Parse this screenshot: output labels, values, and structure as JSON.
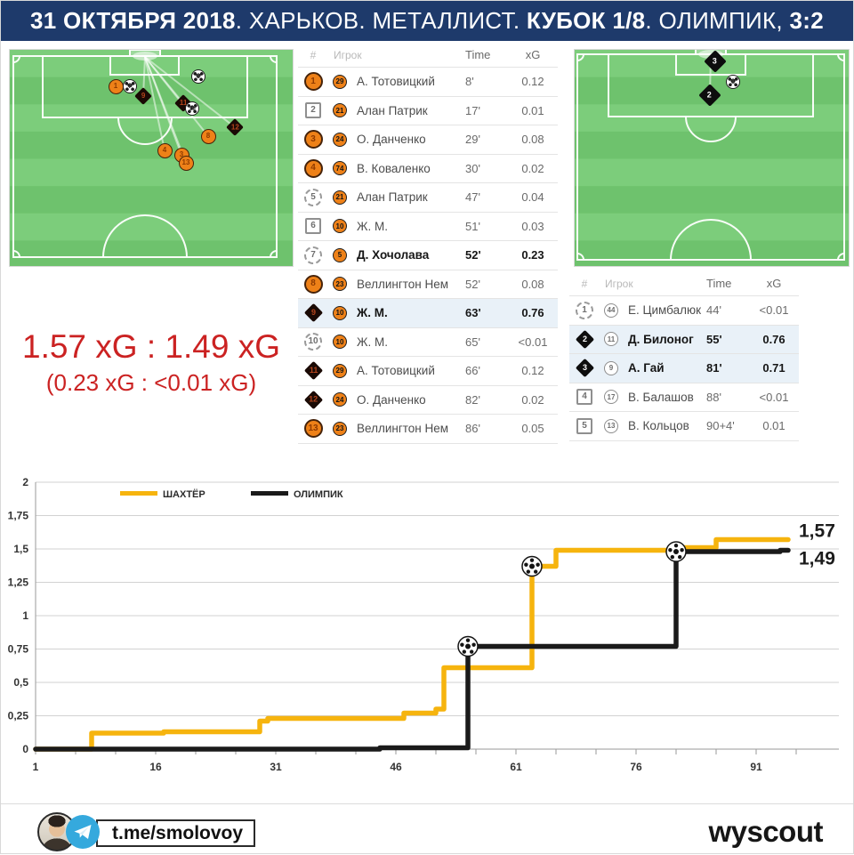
{
  "header": {
    "segments": [
      {
        "text": "31 ОКТЯБРЯ 2018",
        "bold": true
      },
      {
        "text": ". ХАРЬКОВ. МЕТАЛЛИСТ. ",
        "bold": false
      },
      {
        "text": "КУБОК 1/8",
        "bold": true
      },
      {
        "text": ". ОЛИМПИК, ",
        "bold": false
      },
      {
        "text": "3:2",
        "bold": true
      }
    ]
  },
  "score_summary": {
    "main": "1.57 xG : 1.49 xG",
    "sub": "(0.23 xG : <0.01 xG)"
  },
  "shots_table_left": {
    "columns": [
      "#",
      "Игрок",
      "Time",
      "xG"
    ],
    "rows": [
      {
        "n": "1",
        "shape": "circle",
        "jersey": "29",
        "player": "А. Тотовицкий",
        "time": "8'",
        "xg": "0.12",
        "bold": false,
        "highlight": false
      },
      {
        "n": "2",
        "shape": "square",
        "jersey": "21",
        "player": "Алан Патрик",
        "time": "17'",
        "xg": "0.01",
        "bold": false,
        "highlight": false
      },
      {
        "n": "3",
        "shape": "circle",
        "jersey": "24",
        "player": "О. Данченко",
        "time": "29'",
        "xg": "0.08",
        "bold": false,
        "highlight": false
      },
      {
        "n": "4",
        "shape": "circle",
        "jersey": "74",
        "player": "В. Коваленко",
        "time": "30'",
        "xg": "0.02",
        "bold": false,
        "highlight": false
      },
      {
        "n": "5",
        "shape": "dashed",
        "jersey": "21",
        "player": "Алан Патрик",
        "time": "47'",
        "xg": "0.04",
        "bold": false,
        "highlight": false
      },
      {
        "n": "6",
        "shape": "square",
        "jersey": "10",
        "player": "Ж. М.",
        "time": "51'",
        "xg": "0.03",
        "bold": false,
        "highlight": false
      },
      {
        "n": "7",
        "shape": "dashed",
        "jersey": "5",
        "player": "Д. Хочолава",
        "time": "52'",
        "xg": "0.23",
        "bold": true,
        "highlight": false
      },
      {
        "n": "8",
        "shape": "circle",
        "jersey": "23",
        "player": "Веллингтон Нем",
        "time": "52'",
        "xg": "0.08",
        "bold": false,
        "highlight": false
      },
      {
        "n": "9",
        "shape": "diamond",
        "jersey": "10",
        "player": "Ж. М.",
        "time": "63'",
        "xg": "0.76",
        "bold": true,
        "highlight": true
      },
      {
        "n": "10",
        "shape": "dashed",
        "jersey": "10",
        "player": "Ж. М.",
        "time": "65'",
        "xg": "<0.01",
        "bold": false,
        "highlight": false
      },
      {
        "n": "11",
        "shape": "diamond",
        "jersey": "29",
        "player": "А. Тотовицкий",
        "time": "66'",
        "xg": "0.12",
        "bold": false,
        "highlight": false
      },
      {
        "n": "12",
        "shape": "diamond",
        "jersey": "24",
        "player": "О. Данченко",
        "time": "82'",
        "xg": "0.02",
        "bold": false,
        "highlight": false
      },
      {
        "n": "13",
        "shape": "circle",
        "jersey": "23",
        "player": "Веллингтон Нем",
        "time": "86'",
        "xg": "0.05",
        "bold": false,
        "highlight": false
      }
    ]
  },
  "shots_table_right": {
    "columns": [
      "#",
      "Игрок",
      "Time",
      "xG"
    ],
    "rows": [
      {
        "n": "1",
        "shape": "dashed",
        "jersey": "44",
        "player": "Е. Цимбалюк",
        "time": "44'",
        "xg": "<0.01",
        "bold": false,
        "highlight": false
      },
      {
        "n": "2",
        "shape": "diamond",
        "jersey": "11",
        "player": "Д. Билоног",
        "time": "55'",
        "xg": "0.76",
        "bold": true,
        "highlight": true
      },
      {
        "n": "3",
        "shape": "diamond",
        "jersey": "9",
        "player": "А. Гай",
        "time": "81'",
        "xg": "0.71",
        "bold": true,
        "highlight": true
      },
      {
        "n": "4",
        "shape": "square",
        "jersey": "17",
        "player": "В. Балашов",
        "time": "88'",
        "xg": "<0.01",
        "bold": false,
        "highlight": false
      },
      {
        "n": "5",
        "shape": "square",
        "jersey": "13",
        "player": "В. Кольцов",
        "time": "90+4'",
        "xg": "0.01",
        "bold": false,
        "highlight": false
      }
    ]
  },
  "left_pitch": {
    "team": "ШАХТЁР",
    "goal_lines_to": [
      "9",
      "11",
      "12",
      "8",
      "4",
      "3",
      "13"
    ],
    "markers": [
      {
        "type": "circle",
        "label": "1",
        "x": 119,
        "y": 41
      },
      {
        "type": "ball",
        "label": "7",
        "x": 135,
        "y": 41
      },
      {
        "type": "diamond",
        "label": "9",
        "x": 150,
        "y": 52
      },
      {
        "type": "ball",
        "label": "5",
        "x": 212,
        "y": 30
      },
      {
        "type": "diamond",
        "label": "11",
        "x": 195,
        "y": 60
      },
      {
        "type": "ball",
        "label": "10",
        "x": 205,
        "y": 66
      },
      {
        "type": "diamond",
        "label": "12",
        "x": 253,
        "y": 87
      },
      {
        "type": "circle",
        "label": "8",
        "x": 223,
        "y": 97
      },
      {
        "type": "circle",
        "label": "4",
        "x": 174,
        "y": 113
      },
      {
        "type": "circle",
        "label": "3",
        "x": 193,
        "y": 118
      },
      {
        "type": "circle",
        "label": "13",
        "x": 198,
        "y": 127
      }
    ]
  },
  "right_pitch": {
    "team": "ОЛИМПИК",
    "goal_lines_to": [
      "2",
      "3"
    ],
    "markers": [
      {
        "type": "diamond",
        "label": "3",
        "x": 158,
        "y": 13
      },
      {
        "type": "ball",
        "label": "1",
        "x": 178,
        "y": 36
      },
      {
        "type": "diamond",
        "label": "2",
        "x": 152,
        "y": 51
      }
    ]
  },
  "chart_data": {
    "type": "line",
    "title": "",
    "xlabel": "",
    "ylabel": "",
    "xlim": [
      1,
      97
    ],
    "ylim": [
      0,
      2
    ],
    "grid": true,
    "legend_position": "top-left",
    "x_label_ticks": [
      1,
      16,
      31,
      46,
      61,
      76,
      91
    ],
    "x_minor_tick_step": 5,
    "y_ticks": [
      {
        "label": "0",
        "value": 0
      },
      {
        "label": "0,25",
        "value": 0.25
      },
      {
        "label": "0,5",
        "value": 0.5
      },
      {
        "label": "0,75",
        "value": 0.75
      },
      {
        "label": "1",
        "value": 1
      },
      {
        "label": "1,25",
        "value": 1.25
      },
      {
        "label": "1,5",
        "value": 1.5
      },
      {
        "label": "1,75",
        "value": 1.75
      },
      {
        "label": "2",
        "value": 2
      }
    ],
    "legend": [
      {
        "label": "ШАХТЁР",
        "color": "#f6b40e"
      },
      {
        "label": "ОЛИМПИК",
        "color": "#1a1a1a"
      }
    ],
    "series": [
      {
        "name": "ШАХТЁР",
        "color": "#f6b40e",
        "end_label": "1,57",
        "step_points": [
          [
            1,
            0
          ],
          [
            8,
            0.12
          ],
          [
            17,
            0.13
          ],
          [
            29,
            0.21
          ],
          [
            30,
            0.23
          ],
          [
            47,
            0.27
          ],
          [
            51,
            0.3
          ],
          [
            52,
            0.61
          ],
          [
            63,
            1.37
          ],
          [
            65,
            1.37
          ],
          [
            66,
            1.49
          ],
          [
            82,
            1.51
          ],
          [
            86,
            1.57
          ],
          [
            95,
            1.57
          ]
        ]
      },
      {
        "name": "ОЛИМПИК",
        "color": "#1a1a1a",
        "end_label": "1,49",
        "step_points": [
          [
            1,
            0
          ],
          [
            44,
            0.01
          ],
          [
            55,
            0.77
          ],
          [
            81,
            1.48
          ],
          [
            88,
            1.48
          ],
          [
            94,
            1.49
          ],
          [
            95,
            1.49
          ]
        ]
      }
    ],
    "goal_markers": [
      {
        "team": "ОЛИМПИК",
        "minute": 55,
        "value": 0.77
      },
      {
        "team": "ШАХТЁР",
        "minute": 63,
        "value": 1.37
      },
      {
        "team": "ОЛИМПИК",
        "minute": 81,
        "value": 1.48
      }
    ]
  },
  "footer": {
    "telegram_link": "t.me/smolovoy",
    "brand": "wyscout"
  }
}
